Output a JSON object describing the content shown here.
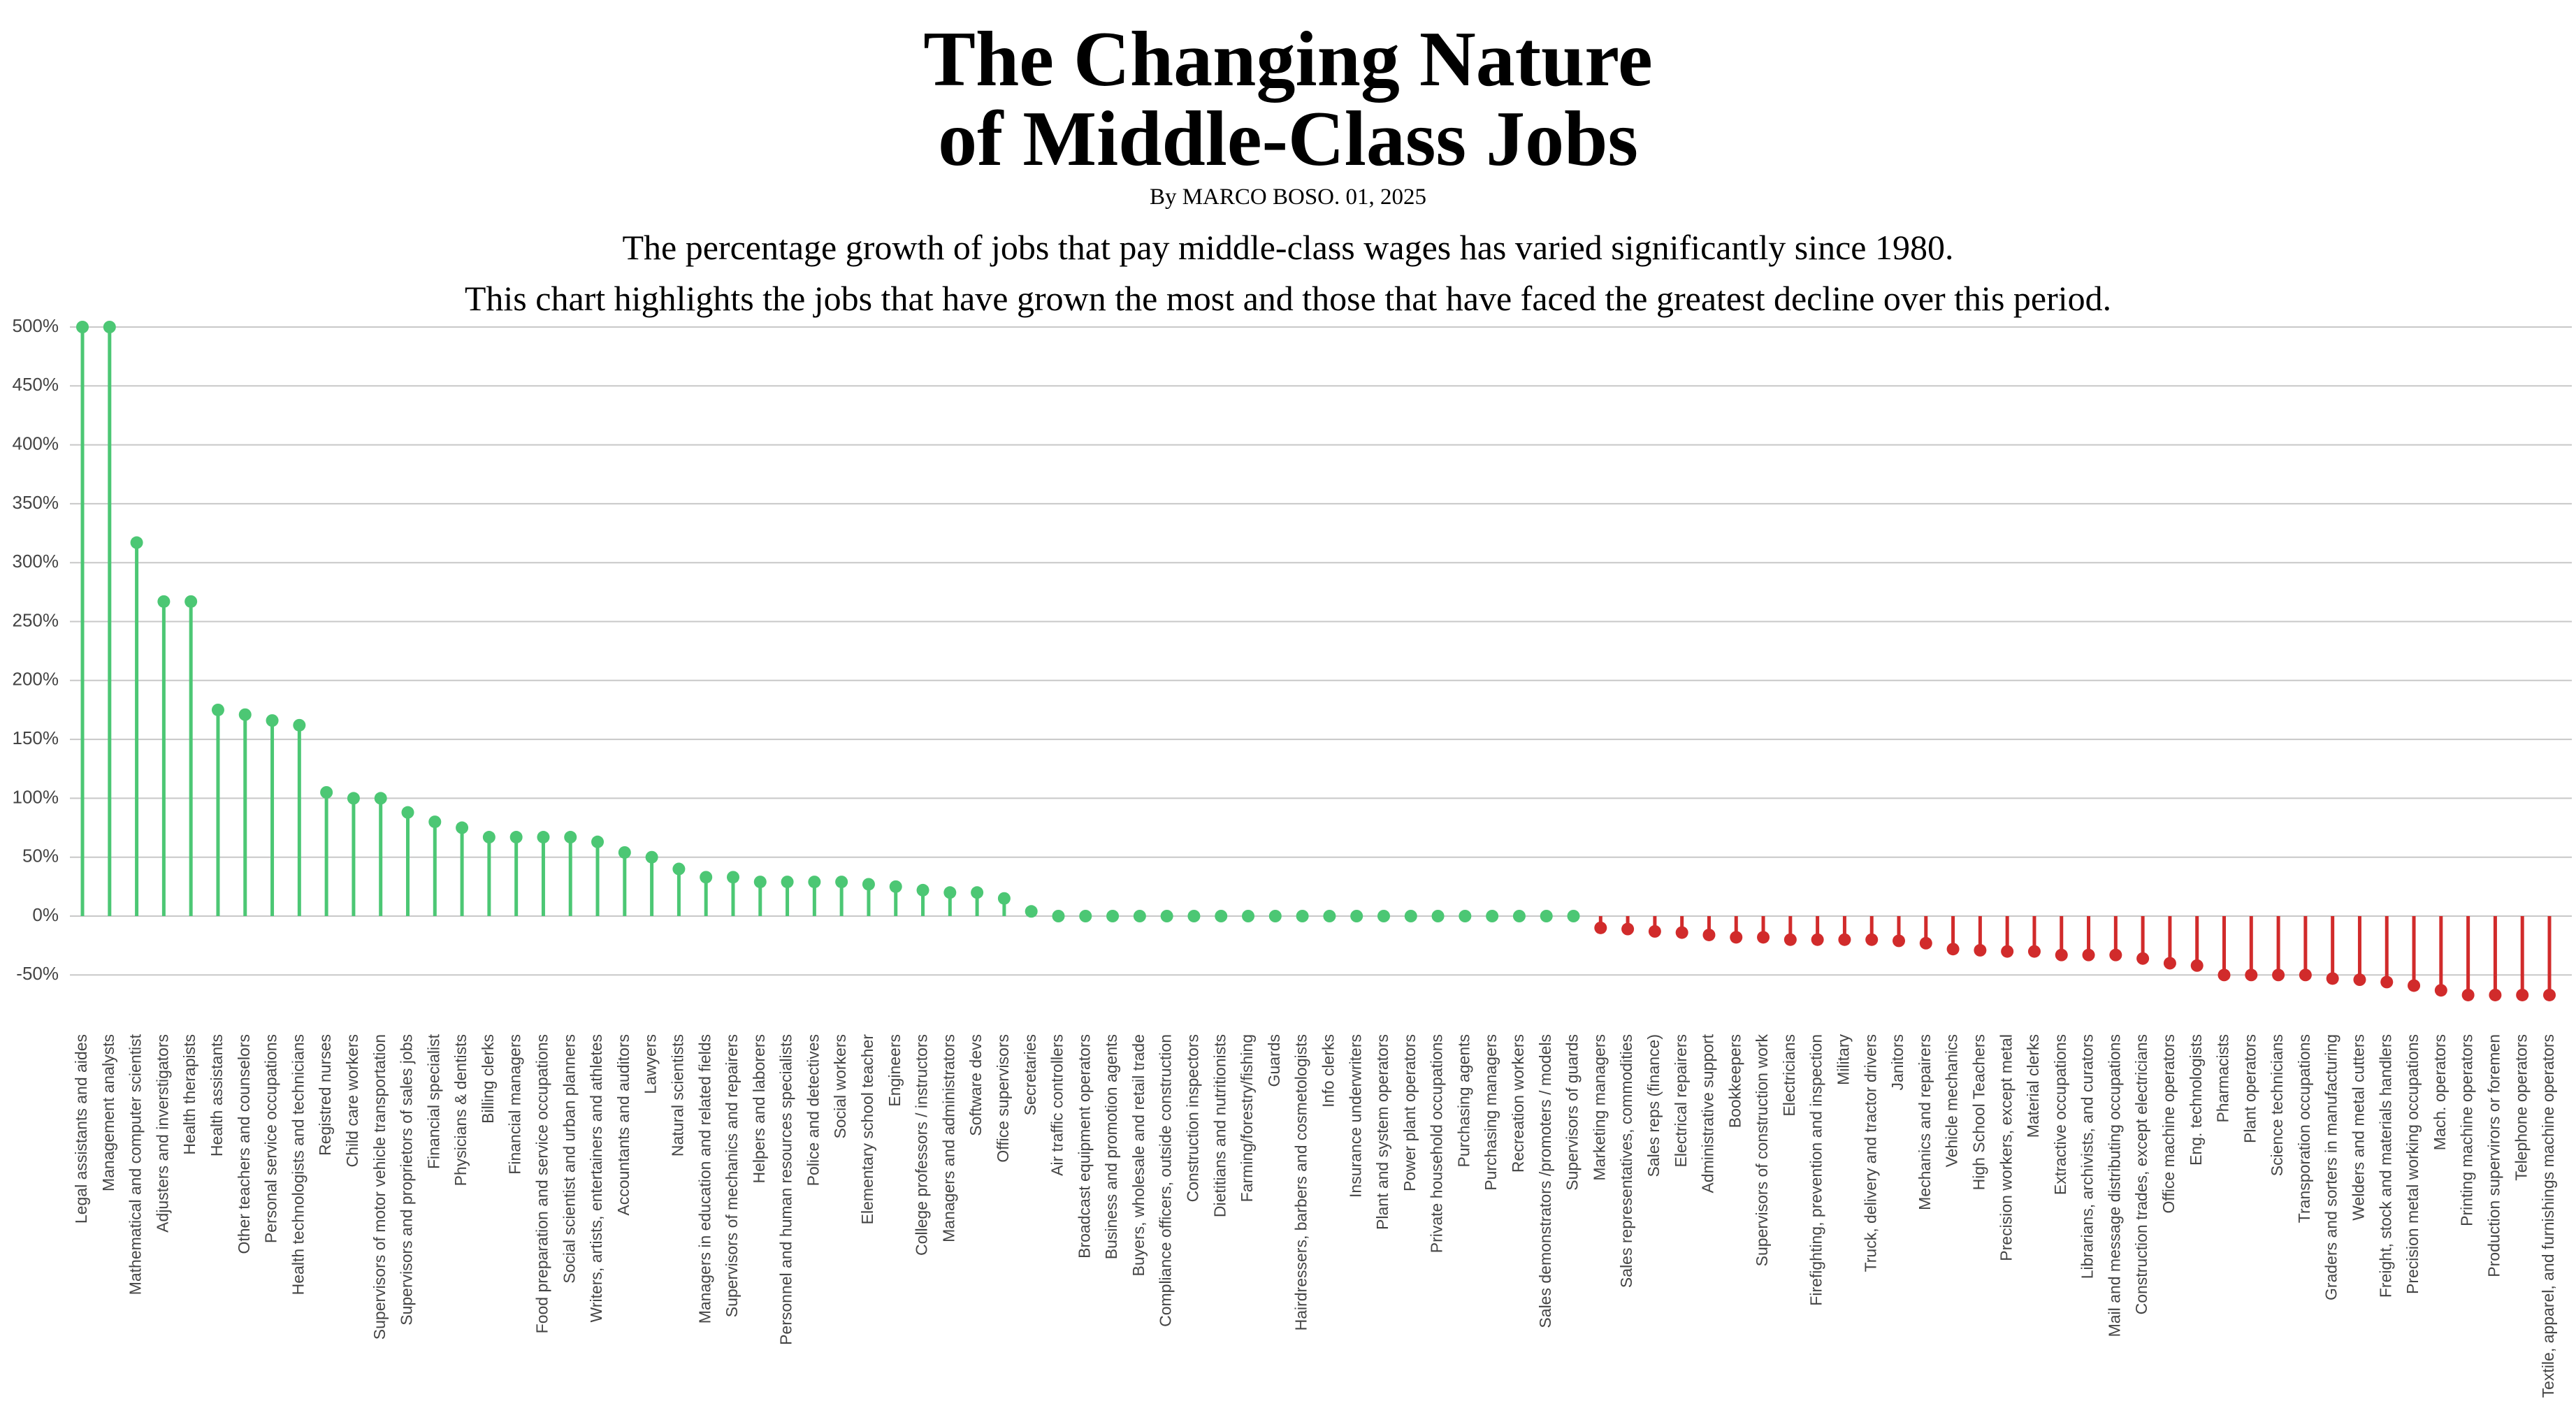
{
  "chart_data": {
    "type": "lollipop",
    "title": [
      "The Changing Nature",
      "of Middle-Class Jobs"
    ],
    "byline": "By MARCO BOSO. 01, 2025",
    "subtitle": [
      "The percentage growth of jobs that pay middle-class wages has varied significantly since 1980.",
      "This chart highlights the jobs that have grown the most and those that have faced the greatest decline over this period."
    ],
    "categories": [
      "Legal assistants and aides",
      "Management analysts",
      "Mathematical and computer scientist",
      "Adjusters and inverstigators",
      "Health therapists",
      "Health assistants",
      "Other teachers and counselors",
      "Personal service occupations",
      "Health technologists and technicians",
      "Registred nurses",
      "Child care workers",
      "Supervisors of motor vehicle transportation",
      "Supervisors and proprietors of sales jobs",
      "Financial specialist",
      "Physicians & dentists",
      "Billing clerks",
      "Financial managers",
      "Food preparation and service occupations",
      "Social scientist and urban planners",
      "Writers, artists, entertainers and athletes",
      "Accountants and auditors",
      "Lawyers",
      "Natural scientists",
      "Managers in education and related fields",
      "Supervisors of mechanics and repairers",
      "Helpers and laborers",
      "Personnel and human resources specialists",
      "Police and detectives",
      "Social workers",
      "Elementary school teacher",
      "Engineers",
      "College professors / instructors",
      "Managers and administrators",
      "Software devs",
      "Office supervisors",
      "Secretaries",
      "Air traffic controllers",
      "Broadcast equipment operators",
      "Business and promotion agents",
      "Buyers, wholesale and retail trade",
      "Compliance officers, outside construction",
      "Construction inspectors",
      "Dietitians and nutritionists",
      "Farming/forestry/fishing",
      "Guards",
      "Hairdressers, barbers and cosmetologists",
      "Info clerks",
      "Insurance underwriters",
      "Plant and system operators",
      "Power plant operators",
      "Private household occupations",
      "Purchasing agents",
      "Purchasing managers",
      "Recreation workers",
      "Sales demonstrators /promoters / models",
      "Supervisors of guards",
      "Marketing managers",
      "Sales representatives, commodities",
      "Sales reps (finance)",
      "Electrical repairers",
      "Administrative support",
      "Bookkeepers",
      "Supervisors of construction work",
      "Electricians",
      "Firefighting, prevention and inspection",
      "Military",
      "Truck, delivery and tractor drivers",
      "Janitors",
      "Mechanics and repairers",
      "Vehicle mechanics",
      "High School Teachers",
      "Precision workers, except metal",
      "Material clerks",
      "Extractive occupations",
      "Librarians, archivists, and curators",
      "Mail and message distributing occupations",
      "Construction trades, except electricians",
      "Office machine operators",
      "Eng. technologists",
      "Pharmacists",
      "Plant operators",
      "Science technicians",
      "Transporation occupations",
      "Graders and sorters in manufacturing",
      "Welders and metal cutters",
      "Freight, stock and materials handlers",
      "Precision metal working occupations",
      "Mach. operators",
      "Printing machine operators",
      "Production supervirors or foremen",
      "Telephone operators",
      "Textile, apparel, and furnishings machine operators"
    ],
    "values": [
      500,
      500,
      317,
      267,
      267,
      175,
      171,
      166,
      162,
      105,
      100,
      100,
      88,
      80,
      75,
      67,
      67,
      67,
      67,
      63,
      54,
      50,
      40,
      33,
      33,
      29,
      29,
      29,
      29,
      27,
      25,
      22,
      20,
      20,
      15,
      4,
      0,
      0,
      0,
      0,
      0,
      0,
      0,
      0,
      0,
      0,
      0,
      0,
      0,
      0,
      0,
      0,
      0,
      0,
      0,
      0,
      -10,
      -11,
      -13,
      -14,
      -16,
      -18,
      -18,
      -20,
      -20,
      -20,
      -20,
      -21,
      -23,
      -28,
      -29,
      -30,
      -30,
      -33,
      -33,
      -33,
      -36,
      -40,
      -42,
      -50,
      -50,
      -50,
      -50,
      -53,
      -54,
      -56,
      -59,
      -63,
      -67,
      -67,
      -67,
      -67
    ],
    "positive_color": "#4cc774",
    "negative_color": "#d12b2b",
    "ylim": [
      -80,
      510
    ],
    "yticks": [
      {
        "value": -50,
        "label": "-50%"
      },
      {
        "value": 0,
        "label": "0%"
      },
      {
        "value": 50,
        "label": "50%"
      },
      {
        "value": 100,
        "label": "100%"
      },
      {
        "value": 150,
        "label": "150%"
      },
      {
        "value": 200,
        "label": "200%"
      },
      {
        "value": 250,
        "label": "250%"
      },
      {
        "value": 300,
        "label": "300%"
      },
      {
        "value": 350,
        "label": "350%"
      },
      {
        "value": 400,
        "label": "400%"
      },
      {
        "value": 450,
        "label": "450%"
      },
      {
        "value": 500,
        "label": "500%"
      }
    ],
    "grid": true
  }
}
